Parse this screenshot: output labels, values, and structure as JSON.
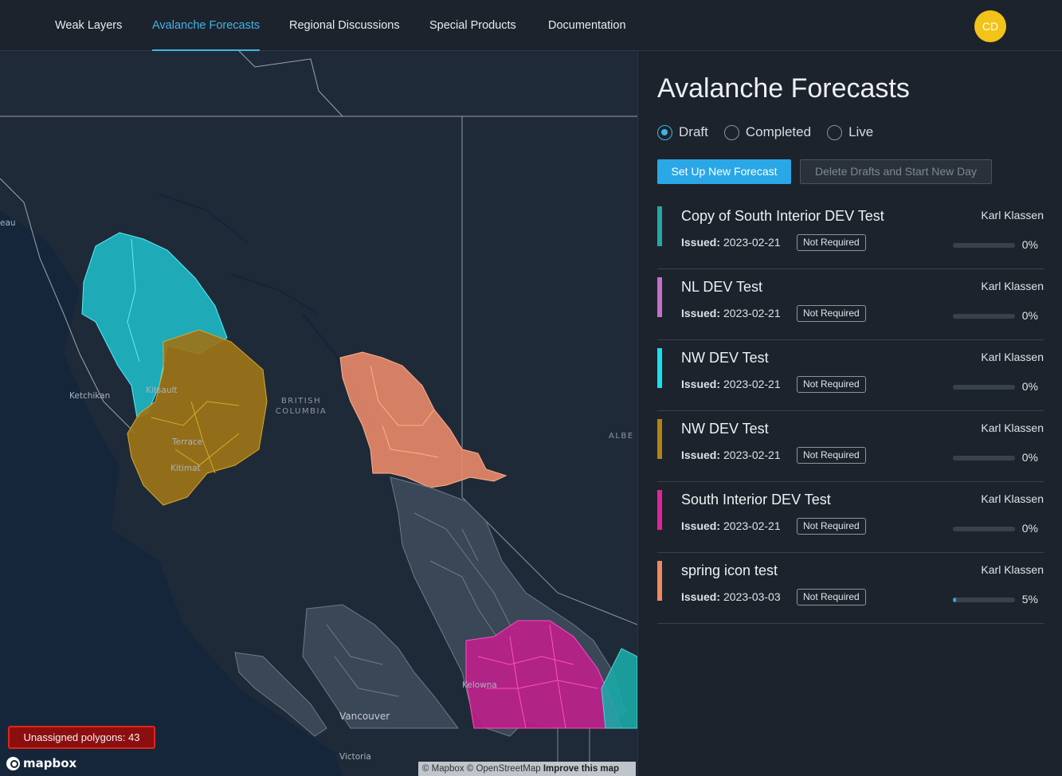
{
  "nav": {
    "items": [
      "Weak Layers",
      "Avalanche Forecasts",
      "Regional Discussions",
      "Special Products",
      "Documentation"
    ],
    "active": "Avalanche Forecasts",
    "avatar_initials": "CD",
    "accent": "#3fb4e8",
    "avatar_color": "#f2c318"
  },
  "map": {
    "labels": {
      "british": "BRITISH",
      "columbia": "COLUMBIA",
      "alberta_partial": "ALBE",
      "ketchikan": "Ketchikan",
      "kitsault": "Kitsault",
      "terrace": "Terrace",
      "kitimat": "Kitimat",
      "kelowna": "Kelowna",
      "vancouver": "Vancouver",
      "victoria": "Victoria",
      "juneau_partial": "eau"
    },
    "unassigned_label": "Unassigned polygons: 43",
    "logo_text": "mapbox",
    "attribution_text": "© Mapbox © OpenStreetMap",
    "attribution_link": "Improve this map"
  },
  "panel": {
    "title": "Avalanche Forecasts",
    "filters": [
      {
        "label": "Draft",
        "checked": true
      },
      {
        "label": "Completed",
        "checked": false
      },
      {
        "label": "Live",
        "checked": false
      }
    ],
    "new_button": "Set Up New Forecast",
    "delete_button": "Delete Drafts and Start New Day",
    "issued_label": "Issued:",
    "forecasts": [
      {
        "name": "Copy of South Interior DEV Test",
        "author": "Karl Klassen",
        "date": "2023-02-21",
        "status": "Not Required",
        "progress_pct": "0%",
        "progress": 0,
        "color": "#23a8a4"
      },
      {
        "name": "NL DEV Test",
        "author": "Karl Klassen",
        "date": "2023-02-21",
        "status": "Not Required",
        "progress_pct": "0%",
        "progress": 0,
        "color": "#c46fc9"
      },
      {
        "name": "NW DEV Test",
        "author": "Karl Klassen",
        "date": "2023-02-21",
        "status": "Not Required",
        "progress_pct": "0%",
        "progress": 0,
        "color": "#19e0ee"
      },
      {
        "name": "NW DEV Test",
        "author": "Karl Klassen",
        "date": "2023-02-21",
        "status": "Not Required",
        "progress_pct": "0%",
        "progress": 0,
        "color": "#b08416"
      },
      {
        "name": "South Interior DEV Test",
        "author": "Karl Klassen",
        "date": "2023-02-21",
        "status": "Not Required",
        "progress_pct": "0%",
        "progress": 0,
        "color": "#e0259a"
      },
      {
        "name": "spring icon test",
        "author": "Karl Klassen",
        "date": "2023-03-03",
        "status": "Not Required",
        "progress_pct": "5%",
        "progress": 5,
        "color": "#ef8a5f"
      }
    ]
  }
}
